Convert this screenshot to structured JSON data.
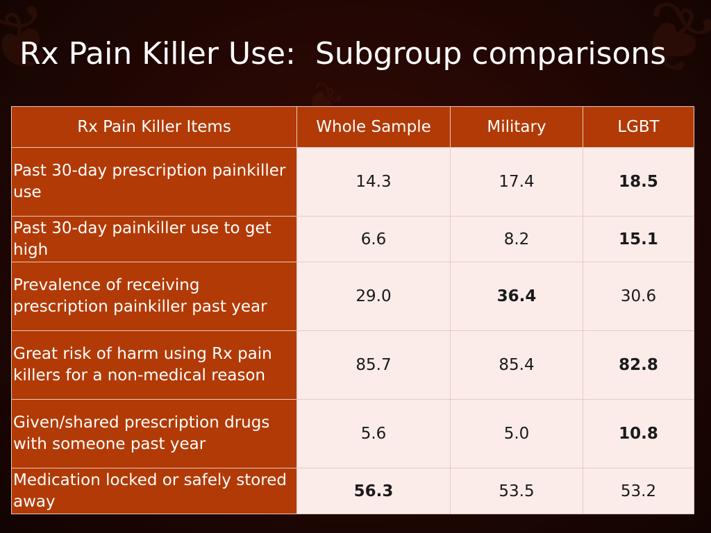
{
  "slide": {
    "title": "Rx Pain Killer Use:  Subgroup comparisons"
  },
  "table": {
    "headers": [
      "Rx Pain Killer Items",
      "Whole Sample",
      "Military",
      "LGBT"
    ],
    "rows": [
      {
        "label": "Past 30-day prescription painkiller use",
        "values": [
          "14.3",
          "17.4",
          "18.5"
        ],
        "bold": [
          false,
          false,
          true
        ]
      },
      {
        "label": "Past 30-day painkiller use to get high",
        "values": [
          "6.6",
          "8.2",
          "15.1"
        ],
        "bold": [
          false,
          false,
          true
        ]
      },
      {
        "label": "Prevalence of receiving prescription painkiller past year",
        "values": [
          "29.0",
          "36.4",
          "30.6"
        ],
        "bold": [
          false,
          true,
          false
        ]
      },
      {
        "label": "Great risk of harm using Rx pain killers for a non-medical reason",
        "values": [
          "85.7",
          "85.4",
          "82.8"
        ],
        "bold": [
          false,
          false,
          true
        ]
      },
      {
        "label": "Given/shared prescription drugs with someone past year",
        "values": [
          "5.6",
          "5.0",
          "10.8"
        ],
        "bold": [
          false,
          false,
          true
        ]
      },
      {
        "label": "Medication locked or safely stored away",
        "values": [
          "56.3",
          "53.5",
          "53.2"
        ],
        "bold": [
          true,
          false,
          false
        ]
      }
    ]
  },
  "theme": {
    "header_bg": "#b23a06",
    "cell_bg": "#fbecea",
    "background": "#2a0804"
  },
  "decor": {
    "leaf_icon": "maple-leaf-icon"
  }
}
